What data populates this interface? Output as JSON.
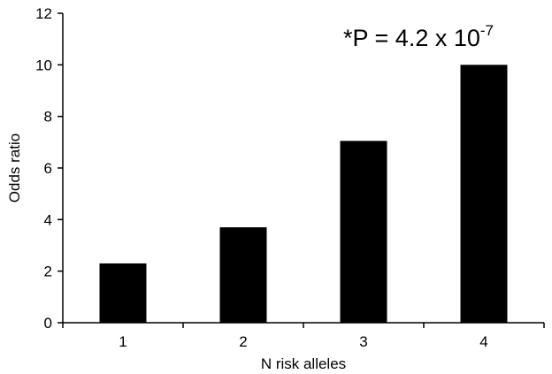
{
  "chart_data": {
    "type": "bar",
    "categories": [
      "1",
      "2",
      "3",
      "4"
    ],
    "values": [
      2.3,
      3.7,
      7.05,
      10.0
    ],
    "xlabel": "N risk alleles",
    "ylabel": "Odds ratio",
    "ylim": [
      0,
      12
    ],
    "yticks": [
      "0",
      "2",
      "4",
      "6",
      "8",
      "10",
      "12"
    ],
    "grid": false,
    "legend": "none",
    "bar_color": "#000000",
    "annotation": {
      "main": "*P = 4.2 x 10",
      "superscript": "-7"
    }
  }
}
